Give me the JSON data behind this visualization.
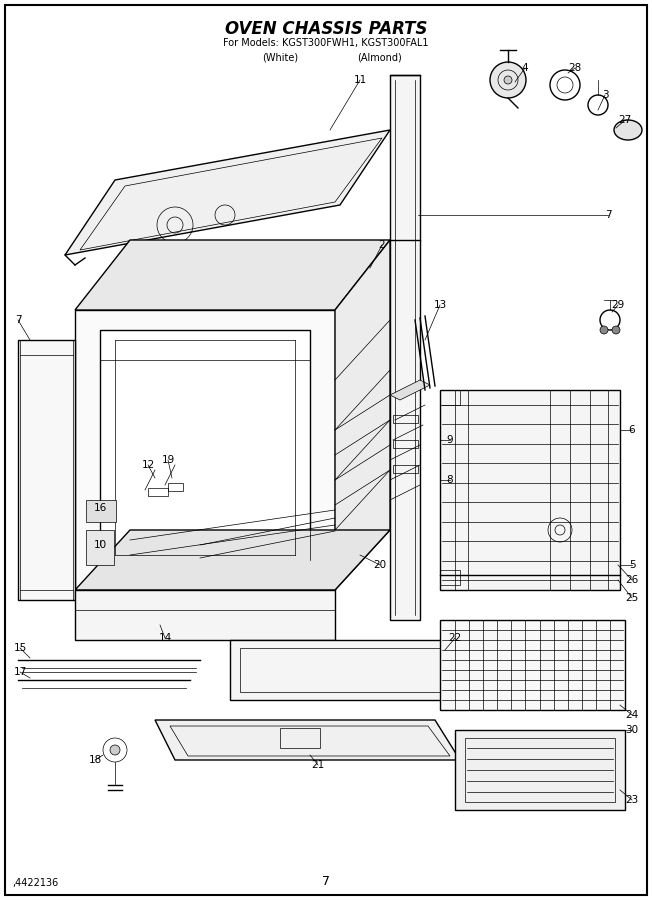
{
  "title_line1": "OVEN CHASSIS PARTS",
  "title_line2": "For Models: KGST300FWH1, KGST300FAL1",
  "title_line3_left": "(White)",
  "title_line3_right": "(Almond)",
  "footer_left": ",4422136",
  "footer_center": "7",
  "background_color": "#ffffff",
  "border_color": "#000000",
  "line_color": "#000000",
  "lw_main": 1.0,
  "lw_thin": 0.5,
  "lw_thick": 1.5
}
